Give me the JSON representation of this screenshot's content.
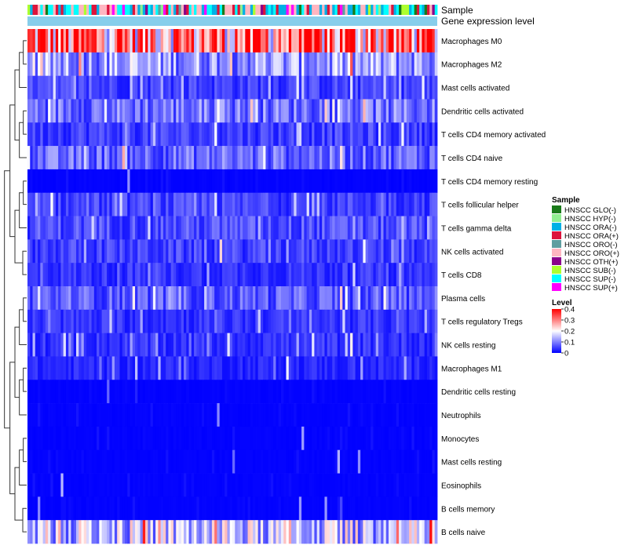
{
  "chart_data": {
    "type": "heatmap",
    "title": "",
    "annotation_tracks": [
      "Sample",
      "Gene expression level"
    ],
    "rows": [
      "Macrophages M0",
      "Macrophages M2",
      "Mast cells activated",
      "Dendritic cells activated",
      "T cells CD4 memory activated",
      "T cells CD4 naive",
      "T cells CD4 memory resting",
      "T cells follicular helper",
      "T cells gamma delta",
      "NK cells activated",
      "T cells CD8",
      "Plasma cells",
      "T cells regulatory  Tregs",
      "NK cells resting",
      "Macrophages M1",
      "Dendritic cells resting",
      "Neutrophils",
      "Monocytes",
      "Mast cells resting",
      "Eosinophils",
      "B cells memory",
      "B cells naive"
    ],
    "row_typical_level": [
      0.3,
      0.12,
      0.05,
      0.09,
      0.05,
      0.08,
      0.01,
      0.05,
      0.06,
      0.05,
      0.04,
      0.07,
      0.04,
      0.04,
      0.03,
      0.01,
      0.01,
      0.01,
      0.01,
      0.01,
      0.01,
      0.15
    ],
    "n_samples": 160,
    "legend_sample": {
      "title": "Sample",
      "items": [
        {
          "label": "HNSCC GLO(-)",
          "color": "#1a7a1a"
        },
        {
          "label": "HNSCC HYP(-)",
          "color": "#90ee90"
        },
        {
          "label": "HNSCC ORA(-)",
          "color": "#00b0e6"
        },
        {
          "label": "HNSCC ORA(+)",
          "color": "#dc143c"
        },
        {
          "label": "HNSCC ORO(-)",
          "color": "#5f9ea0"
        },
        {
          "label": "HNSCC ORO(+)",
          "color": "#ffb6c1"
        },
        {
          "label": "HNSCC OTH(+)",
          "color": "#8b008b"
        },
        {
          "label": "HNSCC SUB(-)",
          "color": "#adff2f"
        },
        {
          "label": "HNSCC SUP(-)",
          "color": "#00ffff"
        },
        {
          "label": "HNSCC SUP(+)",
          "color": "#ff00ff"
        }
      ]
    },
    "legend_level": {
      "title": "Level",
      "ticks": [
        "0.4",
        "0.3",
        "0.2",
        "0.1",
        "0"
      ],
      "range": [
        0,
        0.4
      ],
      "colors": [
        "#0000ff",
        "#ffffff",
        "#ff0000"
      ]
    },
    "gene_expression_color": "#87ceeb"
  }
}
